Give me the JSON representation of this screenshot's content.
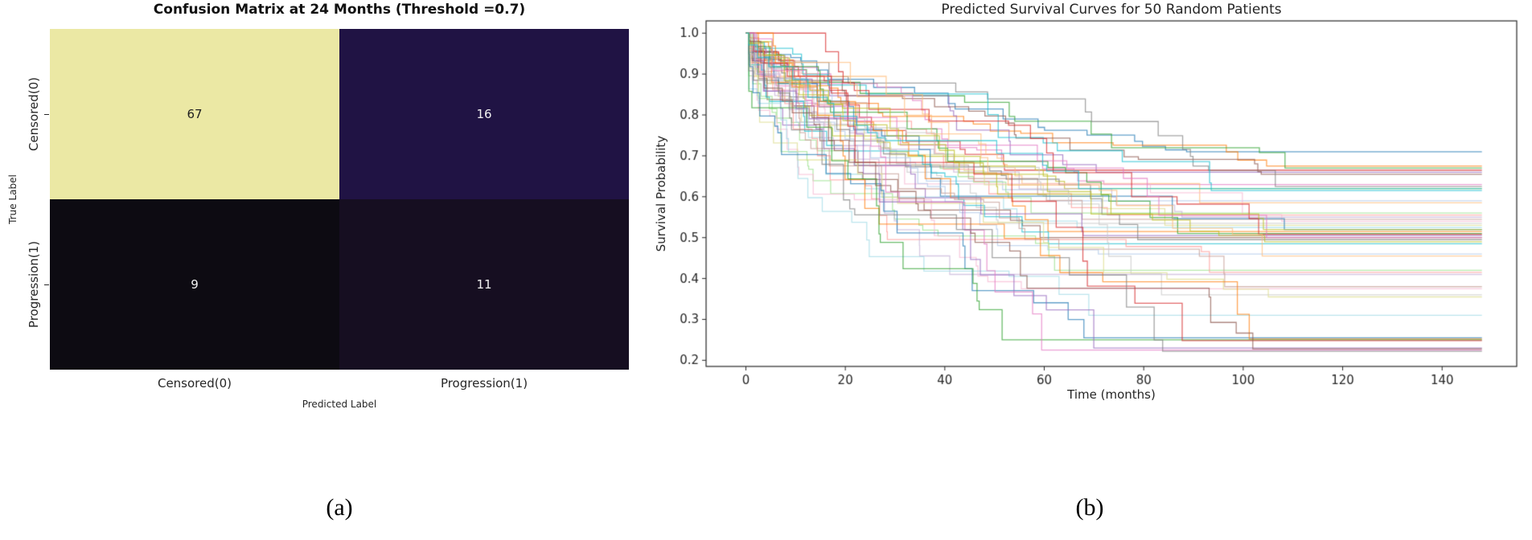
{
  "figure": {
    "caption_a": "(a)",
    "caption_b": "(b)"
  },
  "chart_data": [
    {
      "type": "heatmap",
      "title": "Confusion Matrix at 24 Months (Threshold =0.7)",
      "xlabel": "Predicted Label",
      "ylabel": "True Label",
      "x_categories": [
        "Censored(0)",
        "Progression(1)"
      ],
      "y_categories": [
        "Censored(0)",
        "Progression(1)"
      ],
      "values": [
        [
          67,
          16
        ],
        [
          9,
          11
        ]
      ],
      "cell_colors": [
        [
          "#ebe8a4",
          "#201344"
        ],
        [
          "#0d0b12",
          "#160e21"
        ]
      ],
      "text_colors": [
        [
          "#1f1f1f",
          "#f2f2f2"
        ],
        [
          "#f2f2f2",
          "#f2f2f2"
        ]
      ]
    },
    {
      "type": "line",
      "title": "Predicted Survival Curves for 50 Random Patients",
      "xlabel": "Time (months)",
      "ylabel": "Survival Probability",
      "xlim": [
        -8,
        155
      ],
      "ylim": [
        0.185,
        1.03
      ],
      "xticks": [
        0,
        20,
        40,
        60,
        80,
        100,
        120,
        140
      ],
      "yticks": [
        0.2,
        0.3,
        0.4,
        0.5,
        0.6,
        0.7,
        0.8,
        0.9,
        1.0
      ],
      "x_start": 0,
      "x_end": 148,
      "y_start": 1.0,
      "n_curves": 50,
      "curve_style": "step-down survival functions, steep drop 0-40 months then plateau",
      "alpha": 0.7,
      "palette": [
        "#1f77b4",
        "#ff7f0e",
        "#2ca02c",
        "#d62728",
        "#9467bd",
        "#8c564b",
        "#e377c2",
        "#7f7f7f",
        "#bcbd22",
        "#17becf",
        "#aec7e8",
        "#ffbb78",
        "#98df8a",
        "#ff9896",
        "#c5b0d5",
        "#c49c94",
        "#f7b6d2",
        "#c7c7c7",
        "#dbdb8d",
        "#9edae5"
      ],
      "curves": [
        {
          "end": 0.71,
          "plateau": 110
        },
        {
          "end": 0.675,
          "plateau": 108
        },
        {
          "end": 0.67,
          "plateau": 112
        },
        {
          "end": 0.665,
          "plateau": 70
        },
        {
          "end": 0.66,
          "plateau": 95
        },
        {
          "end": 0.655,
          "plateau": 108
        },
        {
          "end": 0.63,
          "plateau": 75
        },
        {
          "end": 0.625,
          "plateau": 110
        },
        {
          "end": 0.62,
          "plateau": 68
        },
        {
          "end": 0.615,
          "plateau": 100
        },
        {
          "end": 0.59,
          "plateau": 72
        },
        {
          "end": 0.585,
          "plateau": 108
        },
        {
          "end": 0.56,
          "plateau": 65
        },
        {
          "end": 0.555,
          "plateau": 110
        },
        {
          "end": 0.55,
          "plateau": 90
        },
        {
          "end": 0.545,
          "plateau": 70
        },
        {
          "end": 0.54,
          "plateau": 108
        },
        {
          "end": 0.535,
          "plateau": 62
        },
        {
          "end": 0.53,
          "plateau": 100
        },
        {
          "end": 0.525,
          "plateau": 72
        },
        {
          "end": 0.52,
          "plateau": 110
        },
        {
          "end": 0.515,
          "plateau": 66
        },
        {
          "end": 0.51,
          "plateau": 95
        },
        {
          "end": 0.508,
          "plateau": 108
        },
        {
          "end": 0.505,
          "plateau": 70
        },
        {
          "end": 0.5,
          "plateau": 60
        },
        {
          "end": 0.5,
          "plateau": 110
        },
        {
          "end": 0.495,
          "plateau": 85
        },
        {
          "end": 0.49,
          "plateau": 108
        },
        {
          "end": 0.485,
          "plateau": 68
        },
        {
          "end": 0.46,
          "plateau": 72
        },
        {
          "end": 0.455,
          "plateau": 110
        },
        {
          "end": 0.42,
          "plateau": 65
        },
        {
          "end": 0.415,
          "plateau": 100
        },
        {
          "end": 0.41,
          "plateau": 70
        },
        {
          "end": 0.38,
          "plateau": 108
        },
        {
          "end": 0.375,
          "plateau": 62
        },
        {
          "end": 0.36,
          "plateau": 90
        },
        {
          "end": 0.355,
          "plateau": 110
        },
        {
          "end": 0.31,
          "plateau": 75
        },
        {
          "end": 0.255,
          "plateau": 68
        },
        {
          "end": 0.252,
          "plateau": 108
        },
        {
          "end": 0.25,
          "plateau": 60
        },
        {
          "end": 0.248,
          "plateau": 95
        },
        {
          "end": 0.23,
          "plateau": 70
        },
        {
          "end": 0.228,
          "plateau": 108
        },
        {
          "end": 0.225,
          "plateau": 64
        },
        {
          "end": 0.222,
          "plateau": 85
        },
        {
          "end": 0.52,
          "plateau": 105
        },
        {
          "end": 0.62,
          "plateau": 73
        }
      ]
    }
  ]
}
